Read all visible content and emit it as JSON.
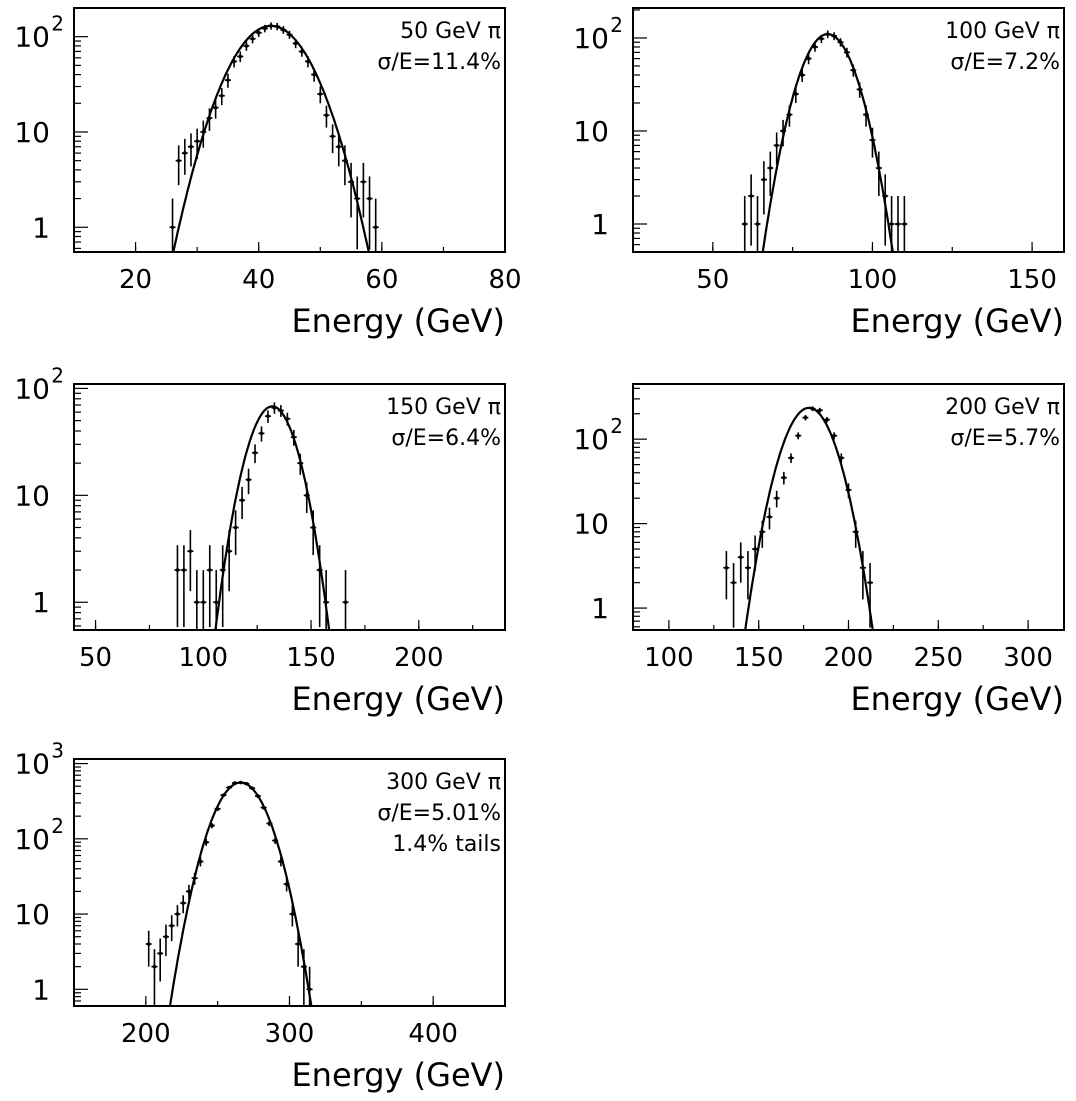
{
  "colors": {
    "ink": "#000000",
    "background": "#ffffff"
  },
  "chart_data": [
    {
      "type": "scatter",
      "yscale": "log",
      "xlabel": "Energy (GeV)",
      "xlim": [
        10,
        80
      ],
      "ylim": [
        0.55,
        200
      ],
      "xticks": [
        20,
        40,
        60,
        80
      ],
      "yticks": [
        {
          "v": 1,
          "label": "1"
        },
        {
          "v": 10,
          "label": "10"
        },
        {
          "v": 100,
          "label": "10",
          "sup": "2"
        }
      ],
      "annotations": [
        "50 GeV π",
        "σ/E=11.4%"
      ],
      "fit": {
        "mean": 42,
        "sigma": 4.8,
        "peak": 130
      },
      "x": [
        26,
        27,
        28,
        29,
        30,
        31,
        32,
        33,
        34,
        35,
        36,
        37,
        38,
        39,
        40,
        41,
        42,
        43,
        44,
        45,
        46,
        47,
        48,
        49,
        50,
        51,
        52,
        53,
        54,
        55,
        56,
        57,
        58,
        59
      ],
      "values": [
        1,
        5,
        6,
        7,
        8,
        10,
        14,
        18,
        24,
        35,
        55,
        62,
        80,
        95,
        110,
        122,
        130,
        128,
        118,
        105,
        85,
        70,
        55,
        40,
        25,
        15,
        9,
        7,
        5,
        3,
        2,
        3,
        2,
        1
      ]
    },
    {
      "type": "scatter",
      "yscale": "log",
      "xlabel": "Energy (GeV)",
      "xlim": [
        25,
        160
      ],
      "ylim": [
        0.5,
        210
      ],
      "xticks": [
        50,
        100,
        150
      ],
      "yticks": [
        {
          "v": 1,
          "label": "1"
        },
        {
          "v": 10,
          "label": "10"
        },
        {
          "v": 100,
          "label": "10",
          "sup": "2"
        }
      ],
      "annotations": [
        "100 GeV π",
        "σ/E=7.2%"
      ],
      "fit": {
        "mean": 86,
        "sigma": 6.2,
        "peak": 110
      },
      "x": [
        60,
        62,
        64,
        66,
        68,
        70,
        72,
        74,
        76,
        78,
        80,
        82,
        84,
        86,
        88,
        90,
        92,
        94,
        96,
        98,
        100,
        102,
        104,
        106,
        108,
        110
      ],
      "values": [
        1,
        2,
        1,
        3,
        4,
        7,
        10,
        15,
        25,
        40,
        60,
        80,
        98,
        110,
        105,
        90,
        70,
        45,
        28,
        15,
        8,
        4,
        2,
        1,
        1,
        1
      ]
    },
    {
      "type": "scatter",
      "yscale": "log",
      "xlabel": "Energy (GeV)",
      "xlim": [
        40,
        240
      ],
      "ylim": [
        0.55,
        110
      ],
      "xticks": [
        50,
        100,
        150,
        200
      ],
      "yticks": [
        {
          "v": 1,
          "label": "1"
        },
        {
          "v": 10,
          "label": "10"
        },
        {
          "v": 100,
          "label": "10",
          "sup": "2"
        }
      ],
      "annotations": [
        "150 GeV π",
        "σ/E=6.4%"
      ],
      "fit": {
        "mean": 132,
        "sigma": 8.5,
        "peak": 68
      },
      "x": [
        88,
        91,
        94,
        97,
        100,
        103,
        106,
        109,
        112,
        115,
        118,
        121,
        124,
        127,
        130,
        133,
        136,
        139,
        142,
        145,
        148,
        151,
        154,
        157,
        166
      ],
      "values": [
        2,
        2,
        3,
        1,
        1,
        2,
        1,
        2,
        3,
        5,
        9,
        14,
        25,
        38,
        55,
        66,
        62,
        52,
        35,
        20,
        10,
        5,
        2,
        1,
        1
      ]
    },
    {
      "type": "scatter",
      "yscale": "log",
      "xlabel": "Energy (GeV)",
      "xlim": [
        80,
        320
      ],
      "ylim": [
        0.55,
        450
      ],
      "xticks": [
        100,
        150,
        200,
        250,
        300
      ],
      "yticks": [
        {
          "v": 1,
          "label": "1"
        },
        {
          "v": 10,
          "label": "10"
        },
        {
          "v": 100,
          "label": "10",
          "sup": "2"
        }
      ],
      "annotations": [
        "200 GeV π",
        "σ/E=5.7%"
      ],
      "fit": {
        "mean": 178,
        "sigma": 10.2,
        "peak": 235
      },
      "x": [
        132,
        136,
        140,
        144,
        148,
        152,
        156,
        160,
        164,
        168,
        172,
        176,
        180,
        184,
        188,
        192,
        196,
        200,
        204,
        208,
        212
      ],
      "values": [
        3,
        2,
        4,
        3,
        5,
        8,
        12,
        20,
        35,
        60,
        110,
        180,
        230,
        220,
        170,
        110,
        60,
        25,
        8,
        3,
        2
      ]
    },
    {
      "type": "scatter",
      "yscale": "log",
      "xlabel": "Energy (GeV)",
      "xlim": [
        150,
        450
      ],
      "ylim": [
        0.6,
        1150
      ],
      "xticks": [
        200,
        300,
        400
      ],
      "yticks": [
        {
          "v": 1,
          "label": "1"
        },
        {
          "v": 10,
          "label": "10"
        },
        {
          "v": 100,
          "label": "10",
          "sup": "2"
        },
        {
          "v": 1000,
          "label": "10",
          "sup": "3"
        }
      ],
      "annotations": [
        "300 GeV π",
        "σ/E=5.01%",
        "1.4% tails"
      ],
      "fit": {
        "mean": 266,
        "sigma": 13.3,
        "peak": 560
      },
      "x": [
        202,
        206,
        210,
        214,
        218,
        222,
        226,
        230,
        234,
        238,
        242,
        246,
        250,
        254,
        258,
        262,
        266,
        270,
        274,
        278,
        282,
        286,
        290,
        294,
        298,
        302,
        306,
        310,
        314
      ],
      "values": [
        4,
        2,
        3,
        5,
        7,
        10,
        14,
        20,
        30,
        50,
        90,
        150,
        250,
        380,
        480,
        550,
        560,
        540,
        470,
        370,
        260,
        160,
        95,
        50,
        25,
        10,
        4,
        2,
        1
      ]
    }
  ]
}
